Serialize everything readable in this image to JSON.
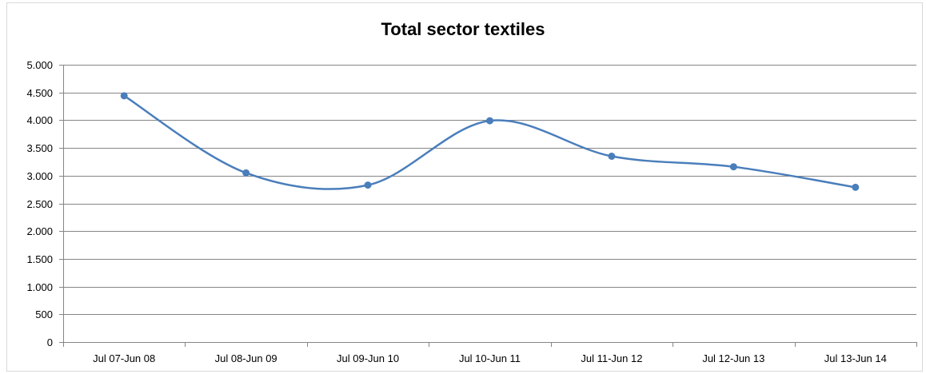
{
  "chart_data": {
    "type": "line",
    "title": "Total sector textiles",
    "xlabel": "",
    "ylabel": "",
    "categories": [
      "Jul 07-Jun 08",
      "Jul 08-Jun 09",
      "Jul 09-Jun 10",
      "Jul 10-Jun 11",
      "Jul 11-Jun 12",
      "Jul 12-Jun 13",
      "Jul 13-Jun 14"
    ],
    "series": [
      {
        "values": [
          4440,
          3050,
          2830,
          3990,
          3350,
          3160,
          2790
        ]
      }
    ],
    "ylim": [
      0,
      5000
    ],
    "yticks": [
      0,
      500,
      1000,
      1500,
      2000,
      2500,
      3000,
      3500,
      4000,
      4500,
      5000
    ],
    "ytick_labels": [
      "0",
      "500",
      "1.000",
      "1.500",
      "2.000",
      "2.500",
      "3.000",
      "3.500",
      "4.000",
      "4.500",
      "5.000"
    ],
    "grid": "horizontal",
    "smooth": true,
    "legend": "none",
    "colors": {
      "line": "#4a7ebb",
      "marker": "#4a7ebb",
      "grid": "#868686",
      "axis": "#868686"
    }
  }
}
